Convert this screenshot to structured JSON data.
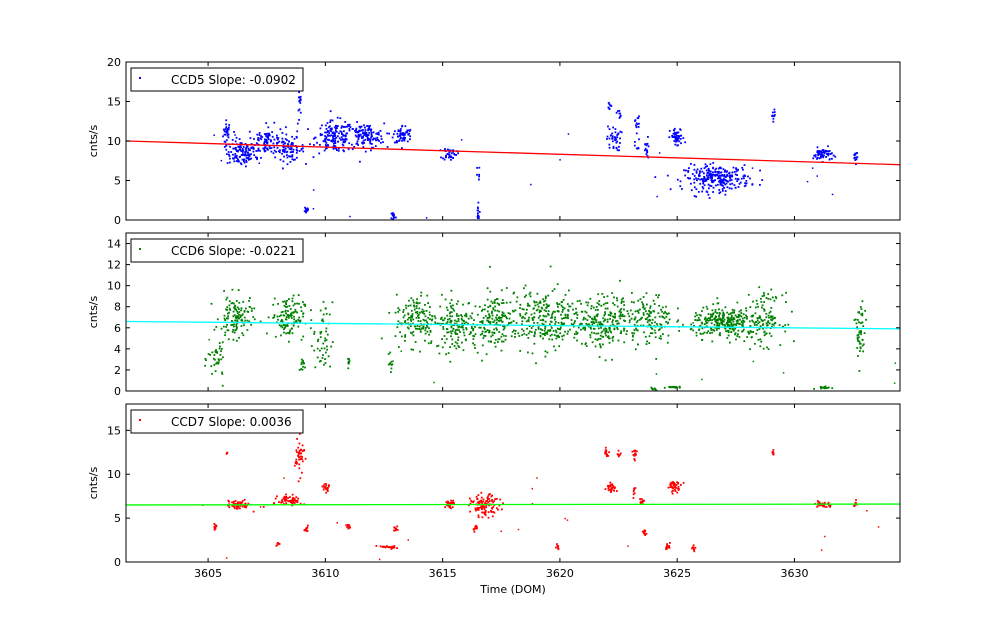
{
  "chart_data": [
    {
      "type": "scatter",
      "ylabel": "cnts/s",
      "xlim": [
        3601.5,
        3634.5
      ],
      "ylim": [
        0,
        20
      ],
      "yticks": [
        0,
        5,
        10,
        15,
        20
      ],
      "legend": {
        "label": "CCD5 Slope: -0.0902",
        "placement": "top-left"
      },
      "series_color": "#0000ff",
      "fit_color": "#ff0000",
      "fit_line": {
        "x": [
          3601.5,
          3634.5
        ],
        "y": [
          10.0,
          7.0
        ]
      },
      "clusters": [
        {
          "x": 3605.8,
          "y": 11.0,
          "sx": 0.08,
          "sy": 0.8,
          "n": 30
        },
        {
          "x": 3606.4,
          "y": 8.4,
          "sx": 0.3,
          "sy": 0.8,
          "n": 110
        },
        {
          "x": 3607.5,
          "y": 10.0,
          "sx": 0.4,
          "sy": 1.0,
          "n": 110
        },
        {
          "x": 3608.5,
          "y": 8.9,
          "sx": 0.3,
          "sy": 0.7,
          "n": 70
        },
        {
          "x": 3608.9,
          "y": 14.0,
          "sx": 0.05,
          "sy": 1.5,
          "n": 18
        },
        {
          "x": 3609.2,
          "y": 1.3,
          "sx": 0.05,
          "sy": 0.3,
          "n": 14
        },
        {
          "x": 3610.4,
          "y": 10.5,
          "sx": 0.4,
          "sy": 1.0,
          "n": 150
        },
        {
          "x": 3611.7,
          "y": 10.6,
          "sx": 0.4,
          "sy": 0.8,
          "n": 130
        },
        {
          "x": 3612.9,
          "y": 0.5,
          "sx": 0.05,
          "sy": 0.3,
          "n": 14
        },
        {
          "x": 3613.3,
          "y": 10.8,
          "sx": 0.2,
          "sy": 0.6,
          "n": 60
        },
        {
          "x": 3615.3,
          "y": 8.4,
          "sx": 0.15,
          "sy": 0.4,
          "n": 40
        },
        {
          "x": 3616.5,
          "y": 0.8,
          "sx": 0.04,
          "sy": 0.6,
          "n": 14
        },
        {
          "x": 3616.5,
          "y": 5.9,
          "sx": 0.04,
          "sy": 0.4,
          "n": 6
        },
        {
          "x": 3622.1,
          "y": 14.2,
          "sx": 0.04,
          "sy": 0.6,
          "n": 8
        },
        {
          "x": 3622.3,
          "y": 10.3,
          "sx": 0.15,
          "sy": 0.8,
          "n": 40
        },
        {
          "x": 3622.5,
          "y": 13.4,
          "sx": 0.05,
          "sy": 0.3,
          "n": 8
        },
        {
          "x": 3623.3,
          "y": 12.3,
          "sx": 0.05,
          "sy": 0.6,
          "n": 12
        },
        {
          "x": 3623.3,
          "y": 9.2,
          "sx": 0.05,
          "sy": 0.5,
          "n": 8
        },
        {
          "x": 3623.7,
          "y": 8.8,
          "sx": 0.06,
          "sy": 0.8,
          "n": 16
        },
        {
          "x": 3625.0,
          "y": 10.4,
          "sx": 0.15,
          "sy": 0.6,
          "n": 50
        },
        {
          "x": 3626.7,
          "y": 5.3,
          "sx": 0.7,
          "sy": 0.8,
          "n": 260
        },
        {
          "x": 3629.1,
          "y": 13.4,
          "sx": 0.04,
          "sy": 0.4,
          "n": 10
        },
        {
          "x": 3631.2,
          "y": 8.3,
          "sx": 0.2,
          "sy": 0.4,
          "n": 60
        },
        {
          "x": 3632.6,
          "y": 8.3,
          "sx": 0.05,
          "sy": 0.5,
          "n": 14
        }
      ]
    },
    {
      "type": "scatter",
      "ylabel": "cnts/s",
      "xlim": [
        3601.5,
        3634.5
      ],
      "ylim": [
        0,
        15
      ],
      "yticks": [
        0,
        2,
        4,
        6,
        8,
        10,
        12,
        14
      ],
      "legend": {
        "label": "CCD6 Slope: -0.0221",
        "placement": "top-left"
      },
      "series_color": "#008000",
      "fit_color": "#00ffff",
      "fit_line": {
        "x": [
          3601.5,
          3634.5
        ],
        "y": [
          6.6,
          5.9
        ]
      },
      "clusters": [
        {
          "x": 3605.4,
          "y": 3.0,
          "sx": 0.2,
          "sy": 1.0,
          "n": 40
        },
        {
          "x": 3606.2,
          "y": 7.0,
          "sx": 0.35,
          "sy": 1.0,
          "n": 120
        },
        {
          "x": 3608.4,
          "y": 7.0,
          "sx": 0.35,
          "sy": 1.0,
          "n": 120
        },
        {
          "x": 3609.0,
          "y": 2.4,
          "sx": 0.05,
          "sy": 0.4,
          "n": 12
        },
        {
          "x": 3609.9,
          "y": 4.8,
          "sx": 0.2,
          "sy": 1.8,
          "n": 50
        },
        {
          "x": 3611.0,
          "y": 2.8,
          "sx": 0.04,
          "sy": 0.3,
          "n": 10
        },
        {
          "x": 3612.8,
          "y": 2.6,
          "sx": 0.04,
          "sy": 0.5,
          "n": 10
        },
        {
          "x": 3613.9,
          "y": 6.8,
          "sx": 0.45,
          "sy": 1.2,
          "n": 150
        },
        {
          "x": 3615.6,
          "y": 6.3,
          "sx": 0.45,
          "sy": 1.3,
          "n": 150
        },
        {
          "x": 3617.1,
          "y": 6.5,
          "sx": 0.4,
          "sy": 1.2,
          "n": 120
        },
        {
          "x": 3619.2,
          "y": 6.8,
          "sx": 1.1,
          "sy": 1.4,
          "n": 340
        },
        {
          "x": 3621.9,
          "y": 6.6,
          "sx": 0.5,
          "sy": 1.2,
          "n": 170
        },
        {
          "x": 3622.6,
          "y": 8.0,
          "sx": 0.1,
          "sy": 1.0,
          "n": 20
        },
        {
          "x": 3623.8,
          "y": 6.8,
          "sx": 0.5,
          "sy": 1.2,
          "n": 140
        },
        {
          "x": 3624.0,
          "y": 0.15,
          "sx": 0.05,
          "sy": 0.08,
          "n": 8
        },
        {
          "x": 3624.9,
          "y": 0.35,
          "sx": 0.15,
          "sy": 0.05,
          "n": 18
        },
        {
          "x": 3627.0,
          "y": 6.5,
          "sx": 0.7,
          "sy": 0.7,
          "n": 280
        },
        {
          "x": 3628.7,
          "y": 6.8,
          "sx": 0.4,
          "sy": 1.2,
          "n": 130
        },
        {
          "x": 3631.2,
          "y": 0.3,
          "sx": 0.15,
          "sy": 0.05,
          "n": 16
        },
        {
          "x": 3632.8,
          "y": 5.5,
          "sx": 0.12,
          "sy": 1.5,
          "n": 50
        }
      ]
    },
    {
      "type": "scatter",
      "ylabel": "cnts/s",
      "xlabel": "Time (DOM)",
      "xlim": [
        3601.5,
        3634.5
      ],
      "ylim": [
        0,
        18
      ],
      "yticks": [
        0,
        5,
        10,
        15
      ],
      "xticks": [
        3605,
        3610,
        3615,
        3620,
        3625,
        3630
      ],
      "legend": {
        "label": "CCD7 Slope: 0.0036",
        "placement": "top-left"
      },
      "series_color": "#ff0000",
      "fit_color": "#00ff00",
      "fit_line": {
        "x": [
          3601.5,
          3634.5
        ],
        "y": [
          6.5,
          6.6
        ]
      },
      "clusters": [
        {
          "x": 3605.3,
          "y": 4.0,
          "sx": 0.05,
          "sy": 0.2,
          "n": 12
        },
        {
          "x": 3605.8,
          "y": 12.5,
          "sx": 0.02,
          "sy": 0.1,
          "n": 3
        },
        {
          "x": 3606.3,
          "y": 6.5,
          "sx": 0.25,
          "sy": 0.25,
          "n": 60
        },
        {
          "x": 3608.0,
          "y": 2.1,
          "sx": 0.04,
          "sy": 0.1,
          "n": 8
        },
        {
          "x": 3608.5,
          "y": 7.0,
          "sx": 0.25,
          "sy": 0.3,
          "n": 60
        },
        {
          "x": 3608.9,
          "y": 12.0,
          "sx": 0.1,
          "sy": 1.0,
          "n": 45
        },
        {
          "x": 3609.2,
          "y": 3.7,
          "sx": 0.05,
          "sy": 0.2,
          "n": 12
        },
        {
          "x": 3610.0,
          "y": 8.5,
          "sx": 0.08,
          "sy": 0.25,
          "n": 20
        },
        {
          "x": 3611.0,
          "y": 4.0,
          "sx": 0.05,
          "sy": 0.15,
          "n": 10
        },
        {
          "x": 3612.6,
          "y": 1.7,
          "sx": 0.2,
          "sy": 0.1,
          "n": 25
        },
        {
          "x": 3613.0,
          "y": 3.7,
          "sx": 0.05,
          "sy": 0.2,
          "n": 10
        },
        {
          "x": 3615.3,
          "y": 6.6,
          "sx": 0.1,
          "sy": 0.2,
          "n": 30
        },
        {
          "x": 3616.4,
          "y": 3.8,
          "sx": 0.05,
          "sy": 0.2,
          "n": 10
        },
        {
          "x": 3616.8,
          "y": 6.4,
          "sx": 0.3,
          "sy": 0.6,
          "n": 110
        },
        {
          "x": 3619.9,
          "y": 1.8,
          "sx": 0.04,
          "sy": 0.15,
          "n": 8
        },
        {
          "x": 3622.0,
          "y": 12.5,
          "sx": 0.05,
          "sy": 0.3,
          "n": 12
        },
        {
          "x": 3622.2,
          "y": 8.5,
          "sx": 0.1,
          "sy": 0.3,
          "n": 30
        },
        {
          "x": 3622.5,
          "y": 12.3,
          "sx": 0.04,
          "sy": 0.2,
          "n": 8
        },
        {
          "x": 3623.2,
          "y": 12.2,
          "sx": 0.05,
          "sy": 0.3,
          "n": 12
        },
        {
          "x": 3623.2,
          "y": 8.0,
          "sx": 0.05,
          "sy": 0.3,
          "n": 8
        },
        {
          "x": 3623.5,
          "y": 6.9,
          "sx": 0.05,
          "sy": 0.2,
          "n": 12
        },
        {
          "x": 3623.6,
          "y": 3.4,
          "sx": 0.06,
          "sy": 0.15,
          "n": 10
        },
        {
          "x": 3624.6,
          "y": 1.8,
          "sx": 0.05,
          "sy": 0.2,
          "n": 10
        },
        {
          "x": 3624.9,
          "y": 8.6,
          "sx": 0.15,
          "sy": 0.3,
          "n": 40
        },
        {
          "x": 3625.7,
          "y": 1.6,
          "sx": 0.04,
          "sy": 0.15,
          "n": 8
        },
        {
          "x": 3629.1,
          "y": 12.4,
          "sx": 0.03,
          "sy": 0.2,
          "n": 8
        },
        {
          "x": 3631.2,
          "y": 6.6,
          "sx": 0.15,
          "sy": 0.2,
          "n": 30
        },
        {
          "x": 3632.6,
          "y": 6.7,
          "sx": 0.05,
          "sy": 0.2,
          "n": 10
        }
      ]
    }
  ]
}
